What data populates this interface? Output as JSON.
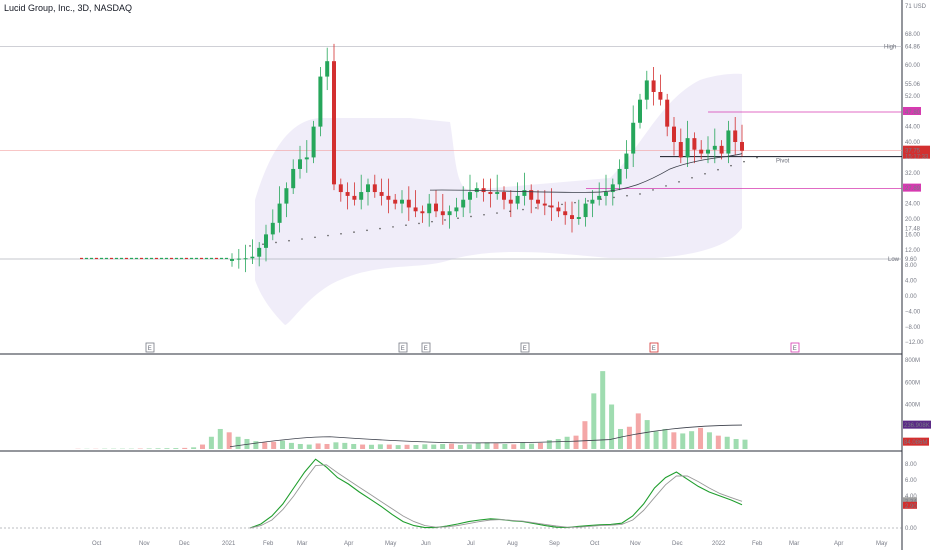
{
  "header": {
    "title": "Lucid Group, Inc., 3D, NASDAQ"
  },
  "colors": {
    "up": "#26a65b",
    "down": "#d32f2f",
    "magenta": "#d63ab0",
    "band": "#ece8f7",
    "pivot": "#131722"
  },
  "chart_data": [
    {
      "type": "candlestick",
      "title": "Lucid Group, Inc., 3D, NASDAQ",
      "ylabel": "USD",
      "axis_unit": "USD",
      "ylim": [
        -13,
        73
      ],
      "y_ticks": [
        "68.00",
        "64.86",
        "60.00",
        "55.06",
        "52.00",
        "47.80",
        "44.00",
        "40.00",
        "37.75",
        "32.00",
        "28.00",
        "24.00",
        "20.00",
        "17.48",
        "16.00",
        "12.00",
        "9.60",
        "8.00",
        "4.00",
        "0.00",
        "−4.00",
        "−8.00",
        "−12.00"
      ],
      "x_ticks": [
        "Oct",
        "Nov",
        "Dec",
        "2021",
        "Feb",
        "Mar",
        "Apr",
        "May",
        "Jun",
        "Jul",
        "Aug",
        "Sep",
        "Oct",
        "Nov",
        "Dec",
        "2022",
        "Feb",
        "Mar",
        "Apr",
        "May"
      ],
      "levels": [
        {
          "name": "High",
          "value": 64.86
        },
        {
          "name": "Low",
          "value": 9.6
        },
        {
          "name": "Pivot",
          "value": 36.2
        },
        {
          "name": "",
          "value": 47.8
        },
        {
          "name": "",
          "value": 27.89
        }
      ],
      "last_price": 37.75,
      "last_price_time": "15:17:33",
      "event_markers": [
        "E",
        "E",
        "E",
        "E",
        "E",
        "E"
      ],
      "candles_close": [
        9.6,
        9.7,
        9.8,
        10.2,
        12.5,
        16,
        19,
        24,
        28,
        33,
        35.5,
        36,
        44,
        57,
        61,
        29,
        27,
        26,
        25,
        27,
        29,
        27,
        26,
        25,
        24,
        25,
        23,
        22,
        21.5,
        24,
        22,
        21,
        22,
        23,
        25,
        27,
        28,
        27,
        26.5,
        27,
        25,
        24,
        26,
        27.5,
        25,
        24,
        23.5,
        23,
        22,
        21,
        20,
        20.5,
        24,
        25,
        26,
        27,
        29,
        33,
        37,
        45,
        51,
        56,
        53,
        51,
        44,
        40,
        36,
        41,
        38,
        37,
        38,
        39,
        37,
        43,
        40,
        37.75
      ],
      "indicators": {
        "vwap_ma_last": "236.908K",
        "volume_last": "84.086M",
        "macd_last": "3.34",
        "signal_last": "2.90"
      }
    },
    {
      "type": "bar",
      "title": "Volume",
      "y_ticks": [
        "800M",
        "600M",
        "400M"
      ],
      "values_m": [
        2,
        2,
        2,
        3,
        3,
        3,
        3,
        4,
        5,
        6,
        7,
        8,
        10,
        15,
        40,
        110,
        180,
        150,
        110,
        90,
        70,
        60,
        65,
        75,
        55,
        45,
        40,
        50,
        45,
        60,
        55,
        45,
        40,
        38,
        42,
        40,
        35,
        38,
        36,
        42,
        40,
        45,
        48,
        36,
        42,
        55,
        60,
        50,
        45,
        42,
        60,
        48,
        55,
        80,
        90,
        110,
        120,
        250,
        500,
        700,
        400,
        180,
        200,
        320,
        260,
        160,
        180,
        150,
        140,
        160,
        190,
        150,
        120,
        110,
        90,
        84
      ]
    },
    {
      "type": "line",
      "title": "MACD",
      "y_ticks": [
        "8.00",
        "6.00",
        "4.00",
        "3.34",
        "2.90",
        "0.00"
      ],
      "series": [
        {
          "name": "",
          "values": [
            0,
            0.5,
            1.5,
            3,
            5,
            7,
            8.6,
            7.6,
            6.3,
            5.5,
            4.5,
            3.6,
            2.7,
            1.7,
            0.8,
            0.3,
            0.05,
            0.05,
            0.25,
            0.5,
            0.8,
            1.0,
            1.15,
            1.05,
            0.9,
            0.8,
            0.55,
            0.3,
            0.1,
            0.05,
            0.2,
            0.3,
            0.4,
            0.45,
            0.6,
            1.5,
            3,
            5,
            6.3,
            7.0,
            6.1,
            5.2,
            4.5,
            4.0,
            3.5,
            2.9
          ]
        },
        {
          "name": "",
          "values": [
            0,
            0.3,
            1.0,
            2.3,
            4.0,
            6.0,
            7.8,
            7.9,
            6.9,
            6.0,
            5.1,
            4.2,
            3.3,
            2.4,
            1.5,
            0.8,
            0.3,
            0.1,
            0.15,
            0.3,
            0.55,
            0.8,
            1.0,
            1.05,
            0.95,
            0.85,
            0.65,
            0.45,
            0.25,
            0.1,
            0.1,
            0.2,
            0.3,
            0.35,
            0.45,
            1.0,
            2.2,
            3.8,
            5.4,
            6.5,
            6.5,
            5.8,
            5.0,
            4.3,
            3.8,
            3.34
          ]
        }
      ]
    }
  ]
}
